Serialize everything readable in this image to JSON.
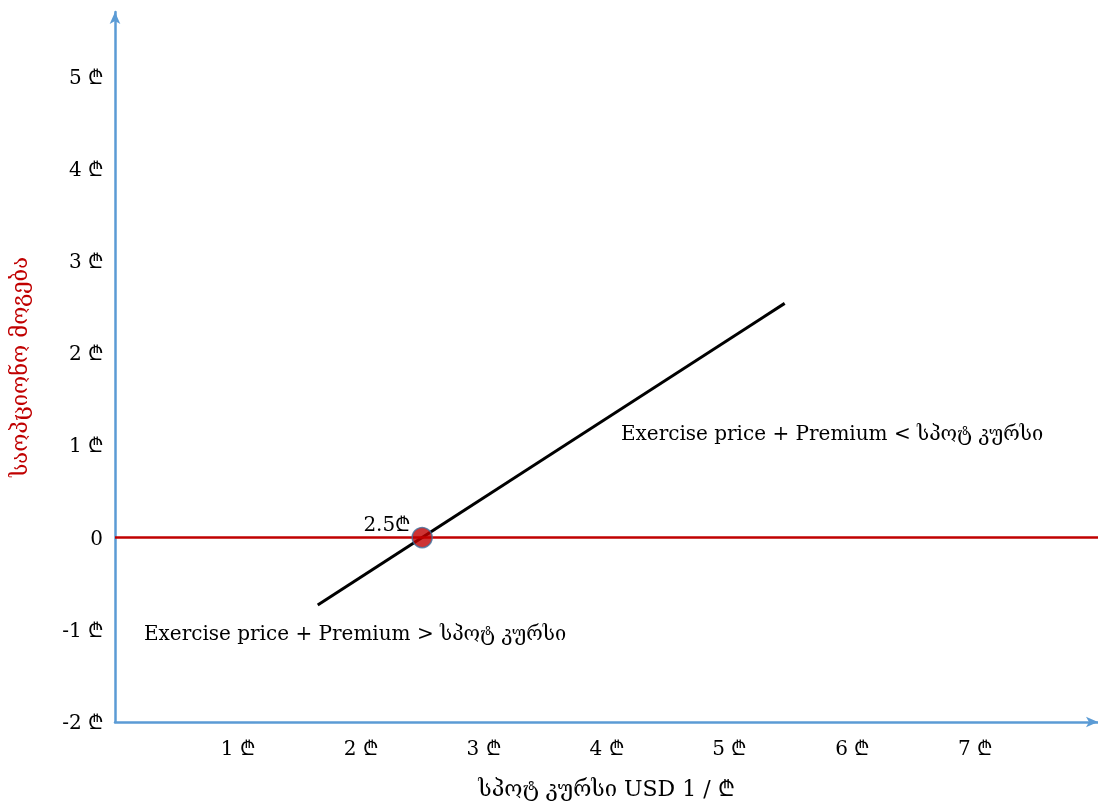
{
  "chart_data": {
    "type": "line",
    "xlabel": "სპოტ კურსი USD 1 / ₾",
    "ylabel": "საოპციონო მოგება",
    "xlim": [
      0,
      8
    ],
    "ylim": [
      -2,
      5.7
    ],
    "xticks": [
      {
        "value": 1,
        "label": "1 ₾"
      },
      {
        "value": 2,
        "label": "2 ₾"
      },
      {
        "value": 3,
        "label": "3 ₾"
      },
      {
        "value": 4,
        "label": "4 ₾"
      },
      {
        "value": 5,
        "label": "5 ₾"
      },
      {
        "value": 6,
        "label": "6 ₾"
      },
      {
        "value": 7,
        "label": "7 ₾"
      }
    ],
    "yticks": [
      {
        "value": -2,
        "label": "-2 ₾"
      },
      {
        "value": -1,
        "label": "-1 ₾"
      },
      0,
      {
        "value": 1,
        "label": "1 ₾"
      },
      {
        "value": 2,
        "label": "2 ₾"
      },
      {
        "value": 3,
        "label": "3 ₾"
      },
      {
        "value": 4,
        "label": "4 ₾"
      },
      {
        "value": 5,
        "label": "5 ₾"
      }
    ],
    "series": [
      {
        "color": "#000000",
        "x": [
          1.65,
          5.45
        ],
        "values": [
          -0.73,
          2.54
        ]
      },
      {
        "type": "scatter",
        "color": "#c00000",
        "x": [
          2.5
        ],
        "values": [
          0
        ],
        "marker": "circle"
      }
    ],
    "ref_lines": [
      {
        "axis": "y",
        "value": 0,
        "color": "#c00000"
      }
    ],
    "annotations": [
      {
        "text": "2.5₾",
        "x": 2.5,
        "y": 0
      },
      "Exercise price + Premium < სპოტ კურსი",
      "Exercise price + Premium > სპოტ კურსი"
    ],
    "grid": false
  }
}
